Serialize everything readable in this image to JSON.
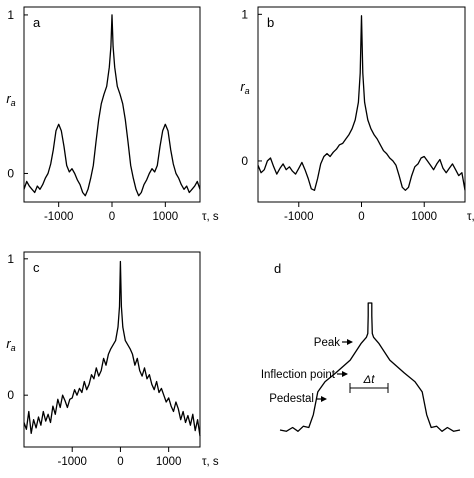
{
  "chart_data": [
    {
      "panel": "a",
      "type": "line",
      "ylabel": "r",
      "ylabel_sub": "a",
      "xlabel": "τ, s",
      "xlim": [
        -1650,
        1650
      ],
      "ylim": [
        -0.18,
        1.05
      ],
      "xticks": [
        -1000,
        0,
        1000
      ],
      "xtick_labels": [
        "-1000",
        "0",
        "1000"
      ],
      "yticks": [
        0,
        1
      ],
      "ytick_labels": [
        "0",
        "1"
      ],
      "series": [
        {
          "x": [
            -1650,
            -1600,
            -1550,
            -1500,
            -1450,
            -1400,
            -1350,
            -1300,
            -1250,
            -1200,
            -1150,
            -1100,
            -1050,
            -1000,
            -950,
            -900,
            -850,
            -800,
            -750,
            -700,
            -650,
            -600,
            -550,
            -500,
            -450,
            -400,
            -350,
            -300,
            -250,
            -200,
            -150,
            -100,
            -50,
            -20,
            0,
            20,
            50,
            100,
            150,
            200,
            250,
            300,
            350,
            400,
            450,
            500,
            550,
            600,
            650,
            700,
            750,
            800,
            850,
            900,
            950,
            1000,
            1050,
            1100,
            1150,
            1200,
            1250,
            1300,
            1350,
            1400,
            1450,
            1500,
            1550,
            1600,
            1650
          ],
          "y": [
            -0.1,
            -0.05,
            -0.08,
            -0.1,
            -0.12,
            -0.08,
            -0.1,
            -0.07,
            -0.03,
            0.0,
            0.06,
            0.15,
            0.27,
            0.31,
            0.27,
            0.17,
            0.05,
            0.01,
            0.03,
            0.0,
            -0.04,
            -0.07,
            -0.12,
            -0.14,
            -0.1,
            -0.03,
            0.05,
            0.2,
            0.34,
            0.44,
            0.5,
            0.55,
            0.67,
            0.8,
            1.0,
            0.8,
            0.67,
            0.55,
            0.5,
            0.44,
            0.34,
            0.2,
            0.05,
            -0.03,
            -0.1,
            -0.14,
            -0.12,
            -0.07,
            -0.04,
            0.0,
            0.03,
            0.01,
            0.05,
            0.17,
            0.27,
            0.31,
            0.27,
            0.15,
            0.06,
            0.0,
            -0.03,
            -0.07,
            -0.1,
            -0.08,
            -0.12,
            -0.1,
            -0.08,
            -0.05,
            -0.1
          ]
        }
      ]
    },
    {
      "panel": "b",
      "type": "line",
      "ylabel": "r",
      "ylabel_sub": "a",
      "xlabel": "τ, s",
      "xlim": [
        -1650,
        1650
      ],
      "ylim": [
        -0.28,
        1.05
      ],
      "xticks": [
        -1000,
        0,
        1000
      ],
      "xtick_labels": [
        "-1000",
        "0",
        "1000"
      ],
      "yticks": [
        0,
        1
      ],
      "ytick_labels": [
        "0",
        "1"
      ],
      "series": [
        {
          "x": [
            -1650,
            -1600,
            -1550,
            -1500,
            -1450,
            -1400,
            -1350,
            -1300,
            -1250,
            -1200,
            -1150,
            -1100,
            -1050,
            -1000,
            -950,
            -900,
            -850,
            -800,
            -750,
            -700,
            -650,
            -600,
            -550,
            -500,
            -450,
            -400,
            -350,
            -300,
            -250,
            -200,
            -150,
            -100,
            -50,
            -20,
            0,
            20,
            50,
            100,
            150,
            200,
            250,
            300,
            350,
            400,
            450,
            500,
            550,
            600,
            650,
            700,
            750,
            800,
            850,
            900,
            950,
            1000,
            1050,
            1100,
            1150,
            1200,
            1250,
            1300,
            1350,
            1400,
            1450,
            1500,
            1550,
            1600,
            1650
          ],
          "y": [
            -0.03,
            -0.08,
            -0.06,
            0.0,
            0.02,
            -0.04,
            -0.09,
            -0.05,
            -0.02,
            -0.06,
            -0.04,
            -0.07,
            -0.09,
            -0.05,
            -0.01,
            -0.06,
            -0.12,
            -0.19,
            -0.2,
            -0.12,
            -0.02,
            0.03,
            0.05,
            0.03,
            0.06,
            0.08,
            0.11,
            0.12,
            0.15,
            0.18,
            0.22,
            0.28,
            0.4,
            0.6,
            0.99,
            0.6,
            0.4,
            0.28,
            0.22,
            0.18,
            0.15,
            0.11,
            0.07,
            0.05,
            0.02,
            0.0,
            -0.03,
            -0.1,
            -0.18,
            -0.2,
            -0.18,
            -0.1,
            -0.04,
            -0.02,
            0.02,
            0.03,
            0.0,
            -0.03,
            -0.06,
            -0.02,
            0.01,
            -0.05,
            -0.08,
            -0.05,
            -0.02,
            -0.06,
            -0.1,
            -0.08,
            -0.2
          ]
        }
      ]
    },
    {
      "panel": "c",
      "type": "line",
      "ylabel": "r",
      "ylabel_sub": "a",
      "xlabel": "τ, s",
      "xlim": [
        -2000,
        1650
      ],
      "ylim": [
        -0.38,
        1.05
      ],
      "xticks": [
        -1000,
        0,
        1000
      ],
      "xtick_labels": [
        "-1000",
        "0",
        "1000"
      ],
      "yticks": [
        0,
        1
      ],
      "ytick_labels": [
        "0",
        "1"
      ],
      "series": [
        {
          "x": [
            -2000,
            -1950,
            -1900,
            -1850,
            -1800,
            -1750,
            -1700,
            -1650,
            -1600,
            -1550,
            -1500,
            -1450,
            -1400,
            -1350,
            -1300,
            -1250,
            -1200,
            -1150,
            -1100,
            -1050,
            -1000,
            -950,
            -900,
            -850,
            -800,
            -750,
            -700,
            -650,
            -600,
            -550,
            -500,
            -450,
            -400,
            -350,
            -300,
            -250,
            -200,
            -150,
            -100,
            -50,
            -20,
            0,
            20,
            50,
            100,
            150,
            200,
            250,
            300,
            350,
            400,
            450,
            500,
            550,
            600,
            650,
            700,
            750,
            800,
            850,
            900,
            950,
            1000,
            1050,
            1100,
            1150,
            1200,
            1250,
            1300,
            1350,
            1400,
            1450,
            1500,
            1550,
            1600,
            1650
          ],
          "y": [
            -0.2,
            -0.25,
            -0.12,
            -0.28,
            -0.18,
            -0.24,
            -0.16,
            -0.22,
            -0.12,
            -0.19,
            -0.14,
            -0.2,
            -0.08,
            -0.14,
            -0.03,
            -0.09,
            0.0,
            -0.04,
            -0.09,
            -0.03,
            -0.02,
            0.04,
            0.0,
            0.05,
            0.02,
            0.1,
            0.04,
            0.08,
            0.15,
            0.12,
            0.2,
            0.14,
            0.18,
            0.27,
            0.22,
            0.3,
            0.34,
            0.37,
            0.4,
            0.5,
            0.65,
            0.98,
            0.65,
            0.5,
            0.4,
            0.37,
            0.34,
            0.3,
            0.22,
            0.27,
            0.18,
            0.14,
            0.2,
            0.12,
            0.15,
            0.08,
            0.04,
            0.1,
            0.02,
            0.05,
            0.0,
            -0.05,
            -0.02,
            -0.08,
            -0.12,
            -0.05,
            -0.1,
            -0.18,
            -0.12,
            -0.2,
            -0.15,
            -0.22,
            -0.14,
            -0.26,
            -0.18,
            -0.3
          ]
        }
      ]
    },
    {
      "panel": "d",
      "type": "line",
      "annotations": [
        "Peak",
        "Inflection point",
        "Pedestal",
        "Δt"
      ],
      "series": [
        {
          "x": [
            -1.0,
            -0.93,
            -0.86,
            -0.8,
            -0.74,
            -0.68,
            -0.63,
            -0.58,
            -0.5,
            -0.38,
            -0.22,
            -0.1,
            -0.04,
            -0.025,
            -0.02,
            -0.02,
            -0.01,
            0.01,
            0.02,
            0.02,
            0.025,
            0.04,
            0.1,
            0.22,
            0.38,
            0.5,
            0.58,
            0.63,
            0.68,
            0.74,
            0.8,
            0.86,
            0.93,
            1.0
          ],
          "y": [
            0.0,
            -0.01,
            0.02,
            -0.01,
            0.03,
            0.02,
            0.12,
            0.3,
            0.38,
            0.45,
            0.55,
            0.68,
            0.73,
            0.76,
            0.9,
            1.0,
            1.0,
            1.0,
            1.0,
            0.9,
            0.76,
            0.73,
            0.68,
            0.55,
            0.45,
            0.38,
            0.3,
            0.12,
            0.02,
            0.03,
            -0.01,
            0.02,
            -0.01,
            0.0
          ]
        }
      ]
    }
  ]
}
